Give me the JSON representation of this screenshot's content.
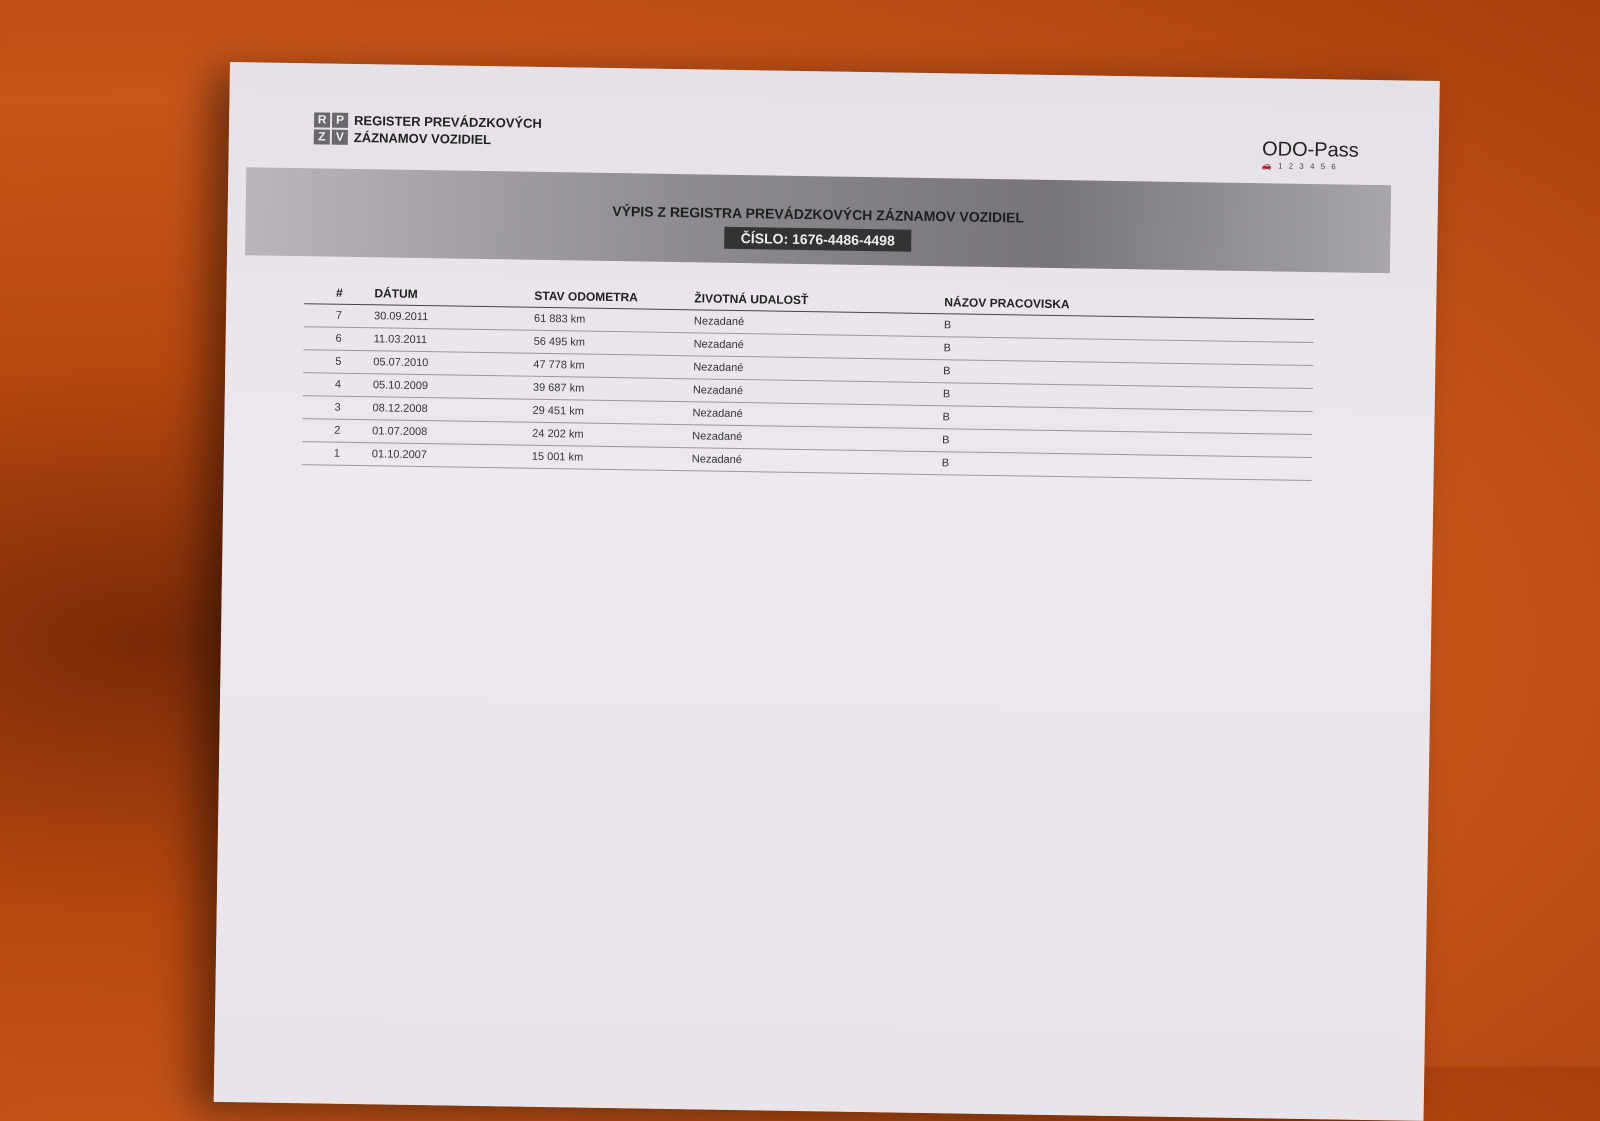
{
  "header": {
    "logo_letters": [
      "R",
      "P",
      "Z",
      "V"
    ],
    "logo_line1": "REGISTER PREVÁDZKOVÝCH",
    "logo_line2": "ZÁZNAMOV VOZIDIEL",
    "brand": "ODO-Pass",
    "brand_tagline": "1 2 3 4 5 6"
  },
  "banner": {
    "title": "VÝPIS Z REGISTRA PREVÁDZKOVÝCH ZÁZNAMOV VOZIDIEL",
    "number": "ČÍSLO: 1676-4486-4498"
  },
  "table": {
    "columns": [
      "#",
      "DÁTUM",
      "STAV ODOMETRA",
      "ŽIVOTNÁ UDALOSŤ",
      "NÁZOV PRACOVISKA"
    ],
    "rows": [
      [
        "7",
        "30.09.2011",
        "61 883 km",
        "Nezadané",
        "B"
      ],
      [
        "6",
        "11.03.2011",
        "56 495 km",
        "Nezadané",
        "B"
      ],
      [
        "5",
        "05.07.2010",
        "47 778 km",
        "Nezadané",
        "B"
      ],
      [
        "4",
        "05.10.2009",
        "39 687 km",
        "Nezadané",
        "B"
      ],
      [
        "3",
        "08.12.2008",
        "29 451 km",
        "Nezadané",
        "B"
      ],
      [
        "2",
        "01.07.2008",
        "24 202 km",
        "Nezadané",
        "B"
      ],
      [
        "1",
        "01.10.2007",
        "15 001 km",
        "Nezadané",
        "B"
      ]
    ]
  }
}
